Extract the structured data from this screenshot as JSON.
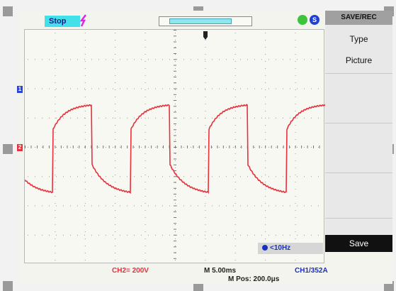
{
  "status": {
    "run_state": "Stop"
  },
  "menu": {
    "title": "SAVE/REC",
    "items": [
      {
        "label": "Type"
      },
      {
        "label": "Picture"
      }
    ],
    "action": "Save"
  },
  "readouts": {
    "frequency": "<10Hz",
    "channel_scale": "CH2= 200V",
    "timebase": "M 5.00ms",
    "trigger_level": "CH1/352A",
    "horizontal_position": "M Pos: 200.0μs"
  },
  "markers": {
    "ch1": "1",
    "ch2": "2"
  },
  "colors": {
    "trace": "#e8303c",
    "stop_badge": "#42e0e8",
    "ch1_marker": "#2a44d6",
    "ch2_marker": "#e8303c",
    "grid_dot": "#9a9a9a"
  },
  "icons": [
    "trigger-mode-icon",
    "power-icon",
    "usb-icon",
    "trigger-position-icon"
  ]
}
